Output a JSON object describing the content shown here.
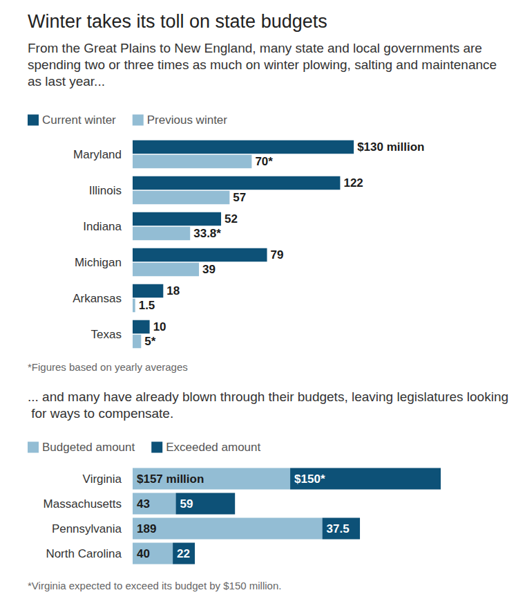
{
  "chart_data": [
    {
      "type": "bar",
      "title": "Winter takes its toll on state budgets",
      "subtitle": "From the Great Plains to New England, many state and local governments are spending two or three times as much on winter plowing, salting and maintenance as last year...",
      "orientation": "horizontal",
      "categories": [
        "Maryland",
        "Illinois",
        "Indiana",
        "Michigan",
        "Arkansas",
        "Texas"
      ],
      "series": [
        {
          "name": "Current winter",
          "color": "#0d5177",
          "values": [
            130,
            122,
            52,
            79,
            18,
            10
          ],
          "value_labels": [
            "$130 million",
            "122",
            "52",
            "79",
            "18",
            "10"
          ]
        },
        {
          "name": "Previous winter",
          "color": "#93bdd4",
          "values": [
            70,
            57,
            33.8,
            39,
            1.5,
            5
          ],
          "value_labels": [
            "70*",
            "57",
            "33.8*",
            "39",
            "1.5",
            "5*"
          ]
        }
      ],
      "xlim": [
        0,
        160
      ],
      "data_labels": true,
      "tick_labels": "y",
      "grid": false,
      "legend": "top left",
      "annotations": [
        "*Figures based on yearly averages"
      ]
    },
    {
      "type": "bar",
      "subtitle": "... and many have already blown through their budgets, leaving legislatures looking for ways to compensate.",
      "orientation": "horizontal",
      "stacked": true,
      "categories": [
        "Virginia",
        "Massachusetts",
        "Pennsylvania",
        "North Carolina"
      ],
      "series": [
        {
          "name": "Budgeted amount",
          "color": "#93bdd4",
          "values": [
            157,
            43,
            189,
            40
          ],
          "value_labels": [
            "$157 million",
            "43",
            "189",
            "40"
          ]
        },
        {
          "name": "Exceeded amount",
          "color": "#0d5177",
          "values": [
            150,
            59,
            37.5,
            22
          ],
          "value_labels": [
            "$150*",
            "59",
            "37.5",
            "22"
          ]
        }
      ],
      "xlim": [
        0,
        360
      ],
      "data_labels": true,
      "tick_labels": "y",
      "grid": false,
      "legend": "top left",
      "annotations": [
        "*Virginia expected to exceed its budget by $150 million."
      ]
    }
  ]
}
